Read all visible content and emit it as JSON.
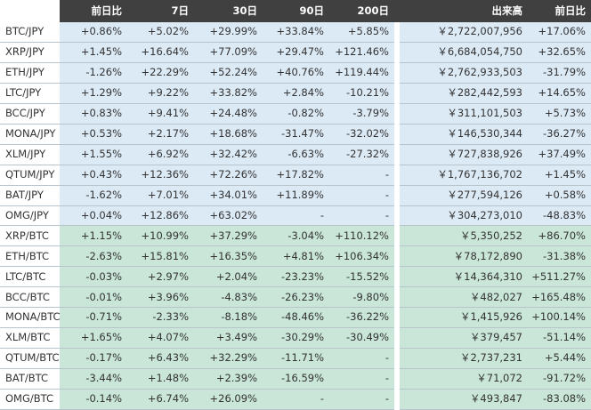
{
  "table": {
    "header": [
      "前日比",
      "7日",
      "30日",
      "90日",
      "200日",
      "出来高",
      "前日比"
    ],
    "sections": [
      {
        "color": "#dceaf6",
        "rows": [
          [
            "BTC/JPY",
            "+0.86%",
            "+5.02%",
            "+29.99%",
            "+33.84%",
            "+5.85%",
            "￥2,722,007,956",
            "+17.06%"
          ],
          [
            "XRP/JPY",
            "+1.45%",
            "+16.64%",
            "+77.09%",
            "+29.47%",
            "+121.46%",
            "￥6,684,054,750",
            "+32.65%"
          ],
          [
            "ETH/JPY",
            "-1.26%",
            "+22.29%",
            "+52.24%",
            "+40.76%",
            "+119.44%",
            "￥2,762,933,503",
            "-31.79%"
          ],
          [
            "LTC/JPY",
            "+1.29%",
            "+9.22%",
            "+33.82%",
            "+2.84%",
            "-10.21%",
            "￥282,442,593",
            "+14.65%"
          ],
          [
            "BCC/JPY",
            "+0.83%",
            "+9.41%",
            "+24.48%",
            "-0.82%",
            "-3.79%",
            "￥311,101,503",
            "+5.73%"
          ],
          [
            "MONA/JPY",
            "+0.53%",
            "+2.17%",
            "+18.68%",
            "-31.47%",
            "-32.02%",
            "￥146,530,344",
            "-36.27%"
          ],
          [
            "XLM/JPY",
            "+1.55%",
            "+6.92%",
            "+32.42%",
            "-6.63%",
            "-27.32%",
            "￥727,838,926",
            "+37.49%"
          ],
          [
            "QTUM/JPY",
            "+0.43%",
            "+12.36%",
            "+72.26%",
            "+17.82%",
            "-",
            "￥1,767,136,702",
            "+1.45%"
          ],
          [
            "BAT/JPY",
            "-1.62%",
            "+7.01%",
            "+34.01%",
            "+11.89%",
            "-",
            "￥277,594,126",
            "+0.58%"
          ],
          [
            "OMG/JPY",
            "+0.04%",
            "+12.86%",
            "+63.02%",
            "-",
            "-",
            "￥304,273,010",
            "-48.83%"
          ]
        ]
      },
      {
        "color": "#c9e6d9",
        "rows": [
          [
            "XRP/BTC",
            "+1.15%",
            "+10.99%",
            "+37.29%",
            "-3.04%",
            "+110.12%",
            "￥5,350,252",
            "+86.70%"
          ],
          [
            "ETH/BTC",
            "-2.63%",
            "+15.81%",
            "+16.35%",
            "+4.81%",
            "+106.34%",
            "￥78,172,890",
            "-31.38%"
          ],
          [
            "LTC/BTC",
            "-0.03%",
            "+2.97%",
            "+2.04%",
            "-23.23%",
            "-15.52%",
            "￥14,364,310",
            "+511.27%"
          ],
          [
            "BCC/BTC",
            "-0.01%",
            "+3.96%",
            "-4.83%",
            "-26.23%",
            "-9.80%",
            "￥482,027",
            "+165.48%"
          ],
          [
            "MONA/BTC",
            "-0.71%",
            "-2.33%",
            "-8.18%",
            "-48.46%",
            "-36.22%",
            "￥1,415,926",
            "+100.14%"
          ],
          [
            "XLM/BTC",
            "+1.65%",
            "+4.07%",
            "+3.49%",
            "-30.29%",
            "-30.49%",
            "￥379,457",
            "-51.14%"
          ],
          [
            "QTUM/BTC",
            "-0.17%",
            "+6.43%",
            "+32.29%",
            "-11.71%",
            "-",
            "￥2,737,231",
            "+5.44%"
          ],
          [
            "BAT/BTC",
            "-3.44%",
            "+1.48%",
            "+2.39%",
            "-16.59%",
            "-",
            "￥71,072",
            "-91.72%"
          ],
          [
            "OMG/BTC",
            "-0.14%",
            "+6.74%",
            "+26.09%",
            "-",
            "-",
            "￥493,847",
            "-83.08%"
          ]
        ]
      }
    ]
  }
}
